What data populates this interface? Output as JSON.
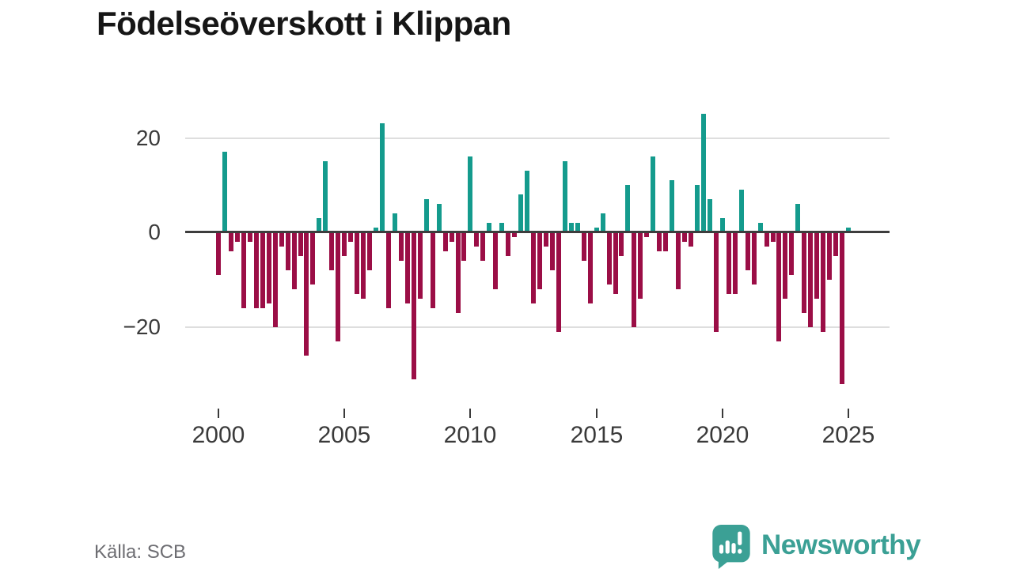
{
  "title": "Födelseöverskott i Klippan",
  "source": "Källa: SCB",
  "branding": {
    "name": "Newsworthy",
    "icon": "speech-bubble-bar-chart-icon"
  },
  "colors": {
    "positive_bar": "#149b8d",
    "negative_bar": "#9b0e46",
    "zero_line": "#3d3d3d",
    "gridline": "#dedede",
    "axis_text": "#3a3a3a",
    "source_text": "#6d6d72",
    "brand_teal": "#3ba095",
    "title_text": "#161616",
    "background": "#ffffff"
  },
  "chart_data": {
    "type": "bar",
    "title": "Födelseöverskott i Klippan",
    "frequency": "quarterly",
    "period_start": "2000 Q1",
    "period_end": "2025 Q1",
    "grid": "horizontal",
    "legend": "none",
    "ylim": [
      -34,
      27
    ],
    "y_ticks": [
      20,
      0,
      -20
    ],
    "y_tick_labels": [
      "20",
      "0",
      "−20"
    ],
    "x_tick_labels": [
      "2000",
      "2005",
      "2010",
      "2015",
      "2020",
      "2025"
    ],
    "values": [
      -9,
      17,
      -4,
      -2,
      -16,
      -2,
      -16,
      -16,
      -15,
      -20,
      -3,
      -8,
      -12,
      -5,
      -26,
      -11,
      3,
      15,
      -8,
      -23,
      -5,
      -2,
      -13,
      -14,
      -8,
      1,
      23,
      -16,
      4,
      -6,
      -15,
      -31,
      -14,
      7,
      -16,
      6,
      -4,
      -2,
      -17,
      -6,
      16,
      -3,
      -6,
      2,
      -12,
      2,
      -5,
      -1,
      8,
      13,
      -15,
      -12,
      -3,
      -8,
      -21,
      15,
      2,
      2,
      -6,
      -15,
      1,
      4,
      -11,
      -13,
      -5,
      10,
      -20,
      -14,
      -1,
      16,
      -4,
      -4,
      11,
      -12,
      -2,
      -3,
      10,
      25,
      7,
      -21,
      3,
      -13,
      -13,
      9,
      -8,
      -11,
      2,
      -3,
      -2,
      -23,
      -14,
      -9,
      6,
      -17,
      -20,
      -14,
      -21,
      -10,
      -5,
      -32,
      1
    ]
  }
}
